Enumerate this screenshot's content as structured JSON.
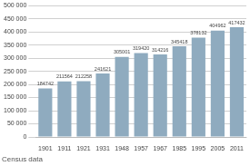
{
  "chart_data": {
    "type": "bar",
    "categories": [
      "1901",
      "1911",
      "1921",
      "1931",
      "1948",
      "1957",
      "1967",
      "1985",
      "1995",
      "2005",
      "2011"
    ],
    "values": [
      184742,
      211564,
      212258,
      241621,
      305001,
      319420,
      314216,
      345418,
      378132,
      404962,
      417432
    ],
    "color": "#8fabbf",
    "ylim": [
      0,
      500000
    ],
    "yticks": [
      0,
      {
        "value": 50000,
        "label": "50 000"
      },
      {
        "value": 100000,
        "label": "100 000"
      },
      {
        "value": 150000,
        "label": "150 000"
      },
      {
        "value": 200000,
        "label": "200 000"
      },
      {
        "value": 250000,
        "label": "250 000"
      },
      {
        "value": 300000,
        "label": "300 000"
      },
      {
        "value": 350000,
        "label": "350 000"
      },
      {
        "value": 400000,
        "label": "400 000"
      },
      {
        "value": 450000,
        "label": "450 000"
      },
      {
        "value": 500000,
        "label": "500 000"
      }
    ],
    "grid": true,
    "data_labels": true,
    "annotations": [
      "Census data"
    ]
  }
}
